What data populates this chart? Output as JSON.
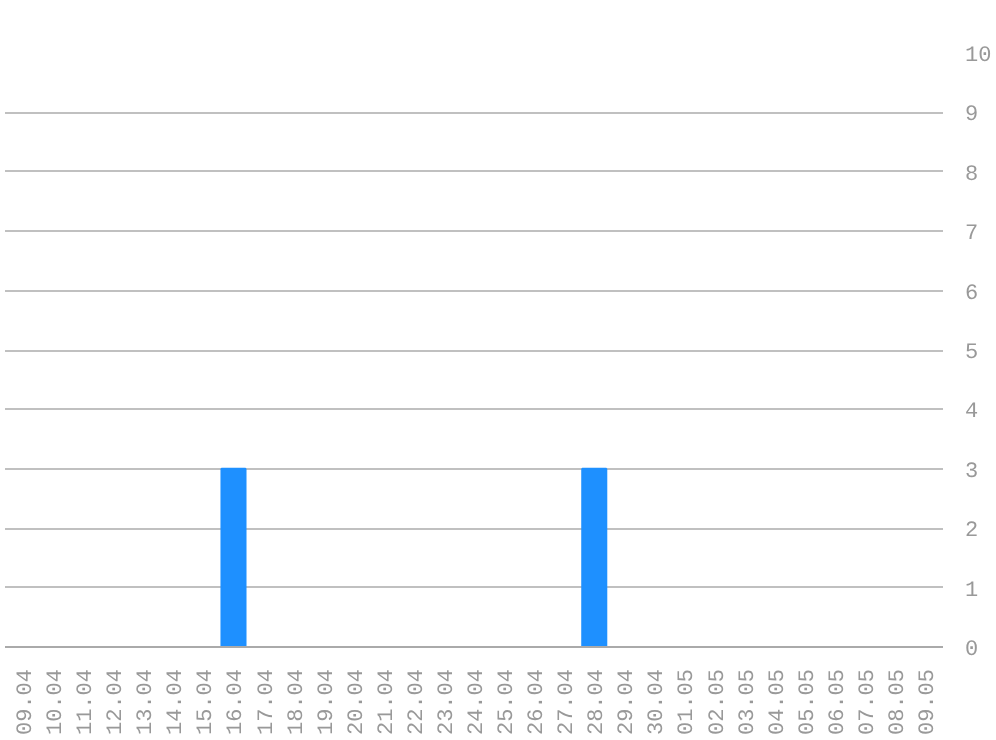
{
  "chart_data": {
    "type": "bar",
    "categories": [
      "09.04",
      "10.04",
      "11.04",
      "12.04",
      "13.04",
      "14.04",
      "15.04",
      "16.04",
      "17.04",
      "18.04",
      "19.04",
      "20.04",
      "21.04",
      "22.04",
      "23.04",
      "24.04",
      "25.04",
      "26.04",
      "27.04",
      "28.04",
      "29.04",
      "30.04",
      "01.05",
      "02.05",
      "03.05",
      "04.05",
      "05.05",
      "06.05",
      "07.05",
      "08.05",
      "09.05"
    ],
    "values": [
      0,
      0,
      0,
      0,
      0,
      0,
      0,
      3,
      0,
      0,
      0,
      0,
      0,
      0,
      0,
      0,
      0,
      0,
      0,
      3,
      0,
      0,
      0,
      0,
      0,
      0,
      0,
      0,
      0,
      0,
      0
    ],
    "color": "#1e90ff",
    "ylim": [
      0,
      10
    ],
    "yticks": [
      0,
      1,
      2,
      3,
      4,
      5,
      6,
      7,
      8,
      9,
      10
    ],
    "grid": "y"
  }
}
